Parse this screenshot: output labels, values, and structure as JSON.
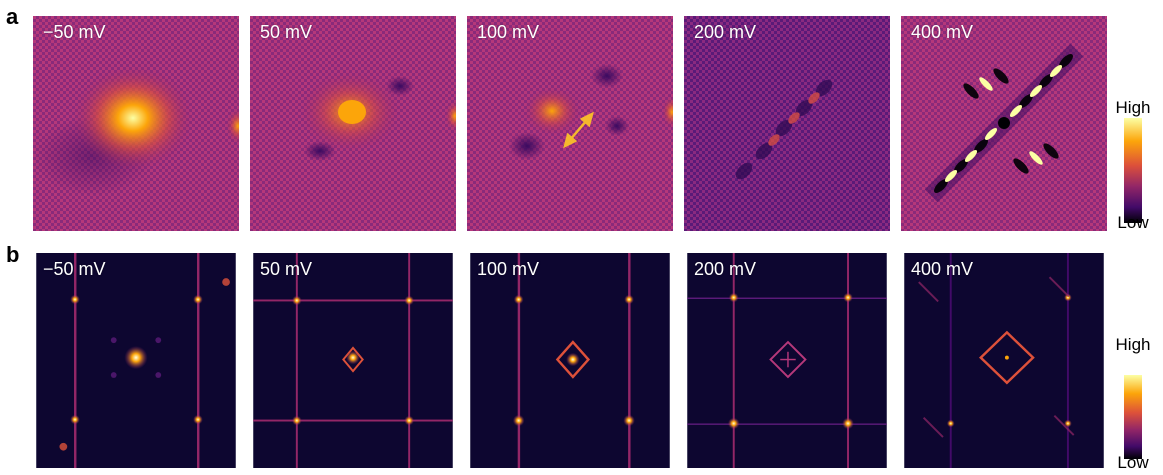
{
  "panel_a": {
    "letter": "a",
    "tiles": [
      {
        "label": "−50 mV",
        "icon": "ldos-map-image"
      },
      {
        "label": "50 mV",
        "icon": "ldos-map-image"
      },
      {
        "label": "100 mV",
        "icon": "ldos-map-image-with-arrow"
      },
      {
        "label": "200 mV",
        "icon": "ldos-map-image"
      },
      {
        "label": "400 mV",
        "icon": "ldos-map-image"
      }
    ],
    "colorbar": {
      "high": "High",
      "low": "Low"
    }
  },
  "panel_b": {
    "letter": "b",
    "tiles": [
      {
        "label": "−50 mV",
        "icon": "fft-map-image"
      },
      {
        "label": "50 mV",
        "icon": "fft-map-image"
      },
      {
        "label": "100 mV",
        "icon": "fft-map-image"
      },
      {
        "label": "200 mV",
        "icon": "fft-map-image"
      },
      {
        "label": "400 mV",
        "icon": "fft-map-image"
      }
    ],
    "colorbar": {
      "high": "High",
      "low": "Low"
    }
  },
  "colors": {
    "colormap": [
      "#000004",
      "#420a68",
      "#932667",
      "#dd513a",
      "#fca50a",
      "#fcffa4"
    ],
    "fft_background": "#0d0630",
    "arrow": "#f5b82e"
  }
}
